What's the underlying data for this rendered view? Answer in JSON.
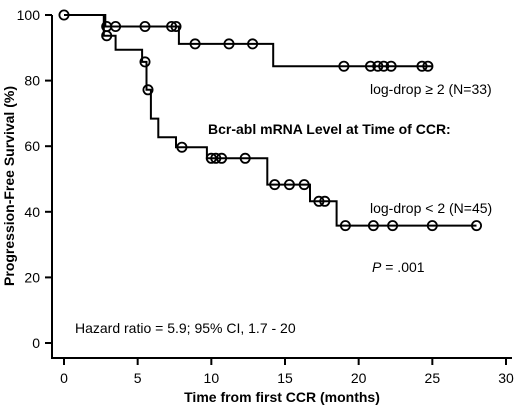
{
  "chart_data": {
    "type": "line",
    "xlabel": "Time from first CCR (months)",
    "ylabel": "Progression-Free Survival (%)",
    "xlim": [
      0,
      30
    ],
    "ylim": [
      0,
      100
    ],
    "xticks": [
      0,
      5,
      10,
      15,
      20,
      25,
      30
    ],
    "yticks": [
      0,
      20,
      40,
      60,
      80,
      100
    ],
    "grid": false,
    "series": [
      {
        "name": "log-drop ≥ 2 (N=33)",
        "steps": [
          [
            0,
            100
          ],
          [
            2.8,
            100
          ],
          [
            2.8,
            96.5
          ],
          [
            7.8,
            96.5
          ],
          [
            7.8,
            91.2
          ],
          [
            14.2,
            91.2
          ],
          [
            14.2,
            84.4
          ],
          [
            25,
            84.4
          ]
        ],
        "censored": [
          [
            2.9,
            96.5
          ],
          [
            3.5,
            96.5
          ],
          [
            5.5,
            96.5
          ],
          [
            7.3,
            96.5
          ],
          [
            7.6,
            96.5
          ],
          [
            8.9,
            91.2
          ],
          [
            11.2,
            91.2
          ],
          [
            12.8,
            91.2
          ],
          [
            19,
            84.4
          ],
          [
            20.8,
            84.4
          ],
          [
            21.3,
            84.4
          ],
          [
            21.7,
            84.4
          ],
          [
            22.2,
            84.4
          ],
          [
            24.3,
            84.4
          ],
          [
            24.7,
            84.4
          ]
        ]
      },
      {
        "name": "log-drop < 2 (N=45)",
        "steps": [
          [
            0,
            100
          ],
          [
            2.7,
            100
          ],
          [
            2.7,
            93.7
          ],
          [
            3.5,
            93.7
          ],
          [
            3.5,
            89.4
          ],
          [
            5.3,
            89.4
          ],
          [
            5.3,
            85.7
          ],
          [
            5.6,
            85.7
          ],
          [
            5.6,
            77.2
          ],
          [
            5.9,
            77.2
          ],
          [
            5.9,
            68.4
          ],
          [
            6.4,
            68.4
          ],
          [
            6.4,
            62.7
          ],
          [
            7.6,
            62.7
          ],
          [
            7.6,
            59.7
          ],
          [
            9.7,
            59.7
          ],
          [
            9.7,
            56.3
          ],
          [
            13.8,
            56.3
          ],
          [
            13.8,
            48.3
          ],
          [
            16.7,
            48.3
          ],
          [
            16.7,
            43.2
          ],
          [
            18.5,
            43.2
          ],
          [
            18.5,
            35.8
          ],
          [
            28,
            35.8
          ]
        ],
        "censored": [
          [
            2.9,
            93.7
          ],
          [
            5.5,
            85.7
          ],
          [
            5.7,
            77.2
          ],
          [
            8,
            59.7
          ],
          [
            10,
            56.3
          ],
          [
            10.3,
            56.3
          ],
          [
            10.7,
            56.3
          ],
          [
            12.3,
            56.3
          ],
          [
            14.3,
            48.3
          ],
          [
            15.3,
            48.3
          ],
          [
            16.3,
            48.3
          ],
          [
            17.3,
            43.2
          ],
          [
            17.7,
            43.2
          ],
          [
            19.1,
            35.8
          ],
          [
            21,
            35.8
          ],
          [
            22.3,
            35.8
          ],
          [
            25,
            35.8
          ],
          [
            28,
            35.8
          ]
        ]
      }
    ],
    "annotations": {
      "subtitle": "Bcr-abl mRNA Level at Time of CCR:",
      "p_label": "P",
      "p_value": " = .001",
      "hazard": "Hazard ratio = 5.9; 95% CI, 1.7 - 20"
    }
  }
}
